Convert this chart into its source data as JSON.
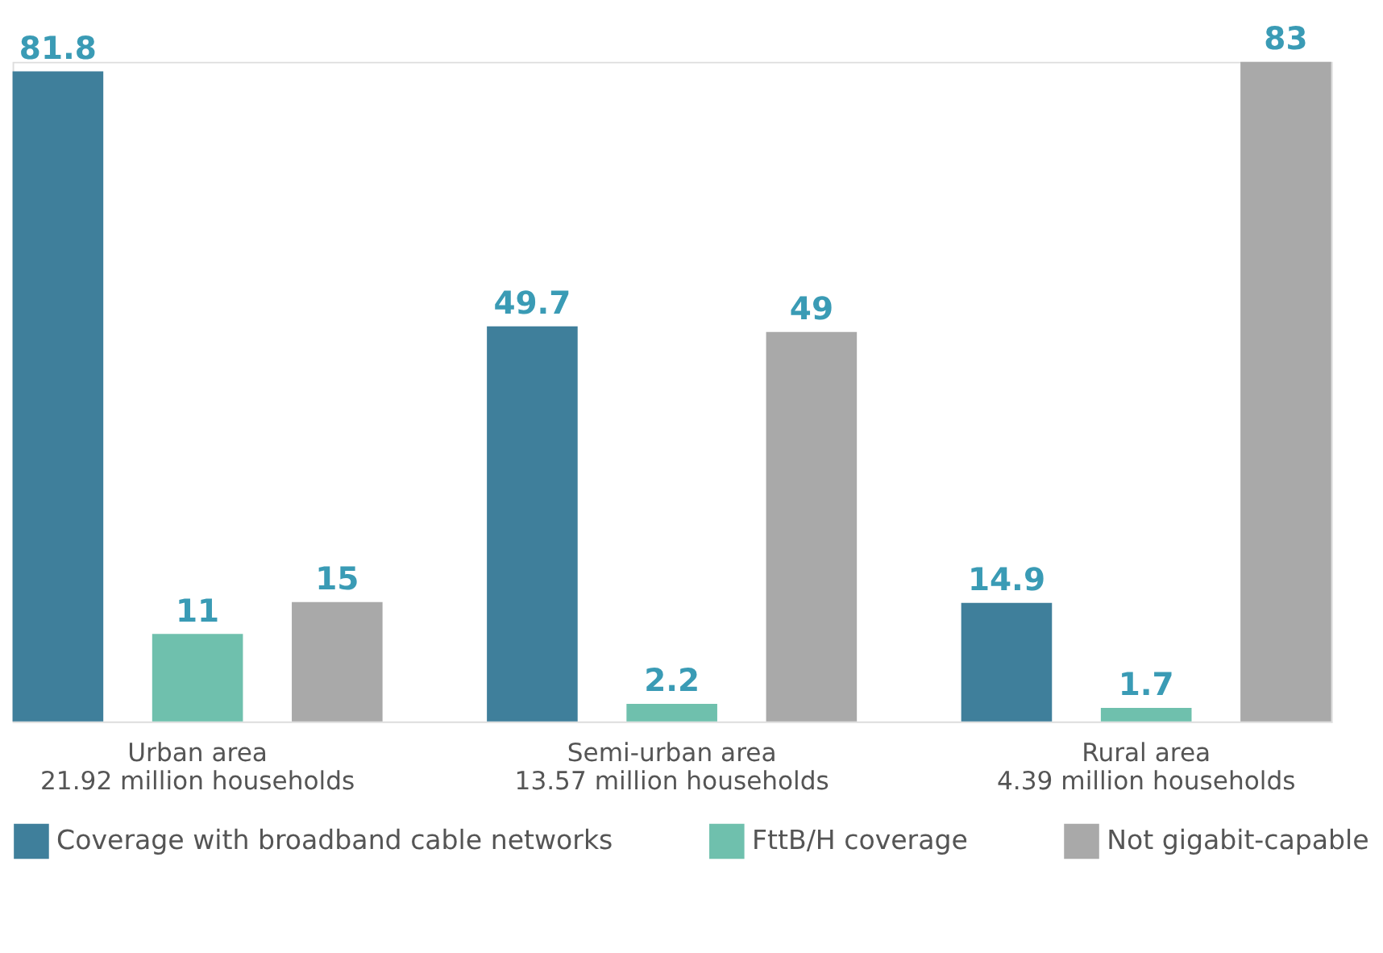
{
  "chart_data": {
    "type": "bar",
    "categories": [
      "Urban area\n21.92 million households",
      "Semi-urban area\n13.57 million households",
      "Rural area\n4.39 million households"
    ],
    "series": [
      {
        "name": "Coverage with broadband cable networks",
        "color": "#3f7f9b",
        "values": [
          81.8,
          49.7,
          14.9
        ]
      },
      {
        "name": "FttB/H coverage",
        "color": "#6fc0ad",
        "values": [
          11,
          2.2,
          1.7
        ]
      },
      {
        "name": "Not gigabit-capable",
        "color": "#a9a9a9",
        "values": [
          15,
          49,
          83
        ]
      }
    ],
    "data_labels": true,
    "grid": false,
    "legend": "bottom"
  }
}
